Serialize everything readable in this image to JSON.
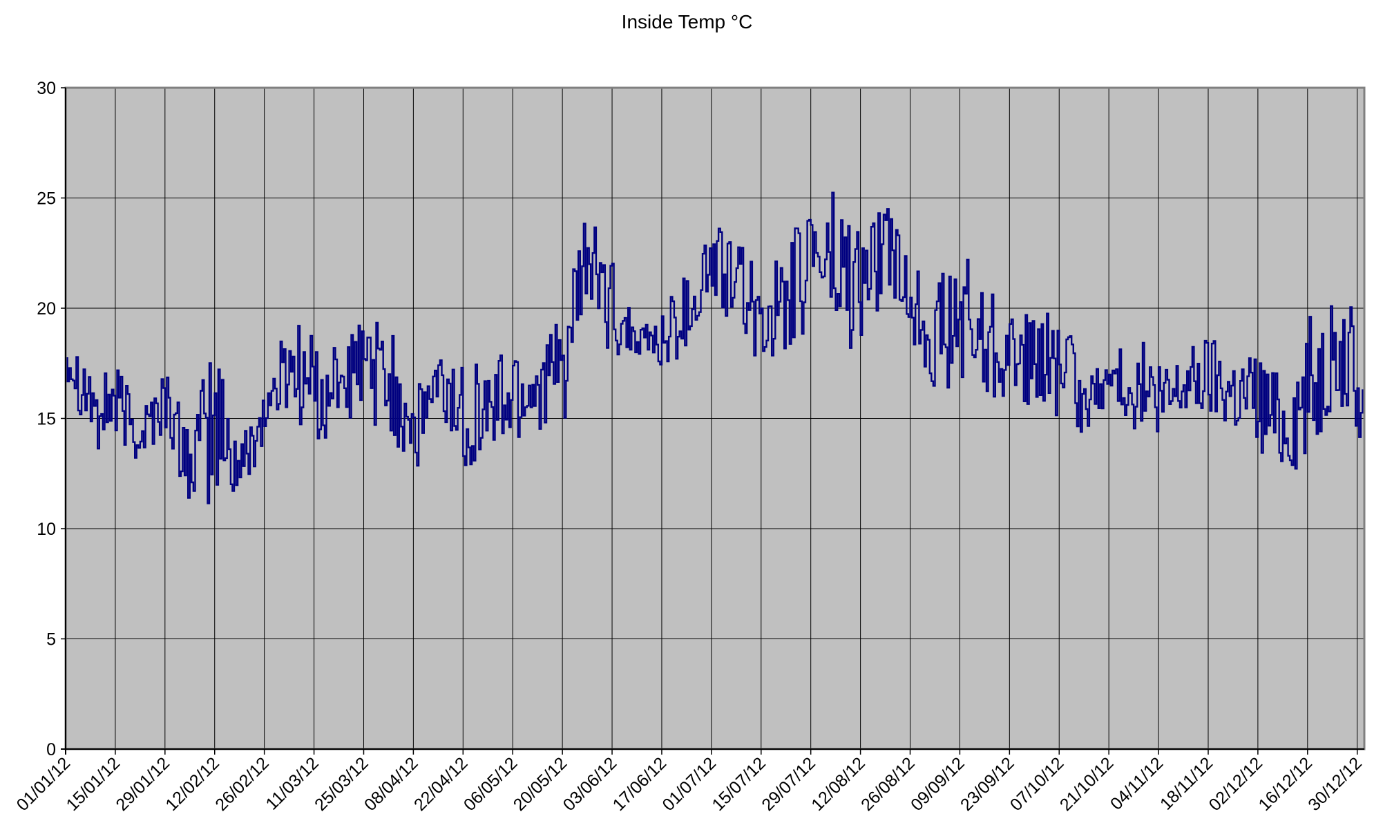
{
  "chart_data": {
    "type": "line",
    "title": "Inside Temp °C",
    "xlabel": "",
    "ylabel": "",
    "ylim": [
      0,
      30
    ],
    "y_ticks": [
      0,
      5,
      10,
      15,
      20,
      25,
      30
    ],
    "x_range": [
      "01/01/12",
      "01/01/13"
    ],
    "x_tick_labels": [
      "01/01/12",
      "15/01/12",
      "29/01/12",
      "12/02/12",
      "26/02/12",
      "11/03/12",
      "25/03/12",
      "08/04/12",
      "22/04/12",
      "06/05/12",
      "20/05/12",
      "03/06/12",
      "17/06/12",
      "01/07/12",
      "15/07/12",
      "29/07/12",
      "12/08/12",
      "26/08/12",
      "09/09/12",
      "23/09/12",
      "07/10/12",
      "21/10/12",
      "04/11/12",
      "18/11/12",
      "02/12/12",
      "16/12/12",
      "30/12/12"
    ],
    "grid": true,
    "legend": "none",
    "plot_background": "#c0c0c0",
    "gridline_color": "#000000",
    "series": [
      {
        "color": "#000080",
        "x": [
          "01/01/12",
          "08/01/12",
          "15/01/12",
          "22/01/12",
          "29/01/12",
          "05/02/12",
          "12/02/12",
          "19/02/12",
          "26/02/12",
          "04/03/12",
          "11/03/12",
          "18/03/12",
          "25/03/12",
          "01/04/12",
          "08/04/12",
          "15/04/12",
          "22/04/12",
          "29/04/12",
          "06/05/12",
          "13/05/12",
          "20/05/12",
          "27/05/12",
          "03/06/12",
          "10/06/12",
          "17/06/12",
          "24/06/12",
          "01/07/12",
          "08/07/12",
          "15/07/12",
          "22/07/12",
          "29/07/12",
          "05/08/12",
          "12/08/12",
          "19/08/12",
          "26/08/12",
          "02/09/12",
          "09/09/12",
          "16/09/12",
          "23/09/12",
          "30/09/12",
          "07/10/12",
          "14/10/12",
          "21/10/12",
          "28/10/12",
          "04/11/12",
          "11/11/12",
          "18/11/12",
          "25/11/12",
          "02/12/12",
          "09/12/12",
          "16/12/12",
          "23/12/12",
          "30/12/12"
        ],
        "min": [
          16.8,
          13.6,
          13.6,
          12.7,
          14.2,
          11.0,
          10.2,
          11.2,
          13.8,
          15.2,
          13.3,
          15.0,
          15.0,
          13.8,
          12.4,
          14.6,
          12.3,
          13.4,
          12.9,
          14.4,
          14.2,
          19.6,
          17.8,
          18.0,
          16.7,
          18.1,
          19.5,
          19.0,
          17.3,
          18.1,
          19.2,
          17.5,
          18.0,
          20.9,
          18.7,
          16.2,
          16.2,
          15.1,
          16.1,
          15.4,
          14.6,
          14.3,
          15.8,
          14.5,
          13.2,
          14.9,
          15.0,
          14.3,
          13.3,
          12.6,
          12.8,
          15.6,
          13.3
        ],
        "max": [
          18.9,
          18.1,
          17.4,
          15.8,
          17.4,
          14.6,
          18.9,
          14.0,
          16.6,
          19.8,
          18.9,
          18.3,
          19.9,
          19.2,
          17.1,
          18.1,
          17.9,
          17.3,
          19.2,
          18.4,
          19.6,
          24.7,
          22.1,
          19.2,
          20.2,
          21.7,
          24.4,
          22.9,
          22.4,
          22.1,
          26.9,
          25.9,
          24.2,
          24.8,
          22.4,
          21.6,
          22.5,
          21.9,
          20.1,
          19.6,
          20.2,
          16.9,
          17.6,
          19.2,
          17.4,
          18.2,
          18.9,
          18.2,
          18.4,
          16.8,
          19.8,
          20.2,
          20.1
        ],
        "last": 17.9
      }
    ]
  }
}
